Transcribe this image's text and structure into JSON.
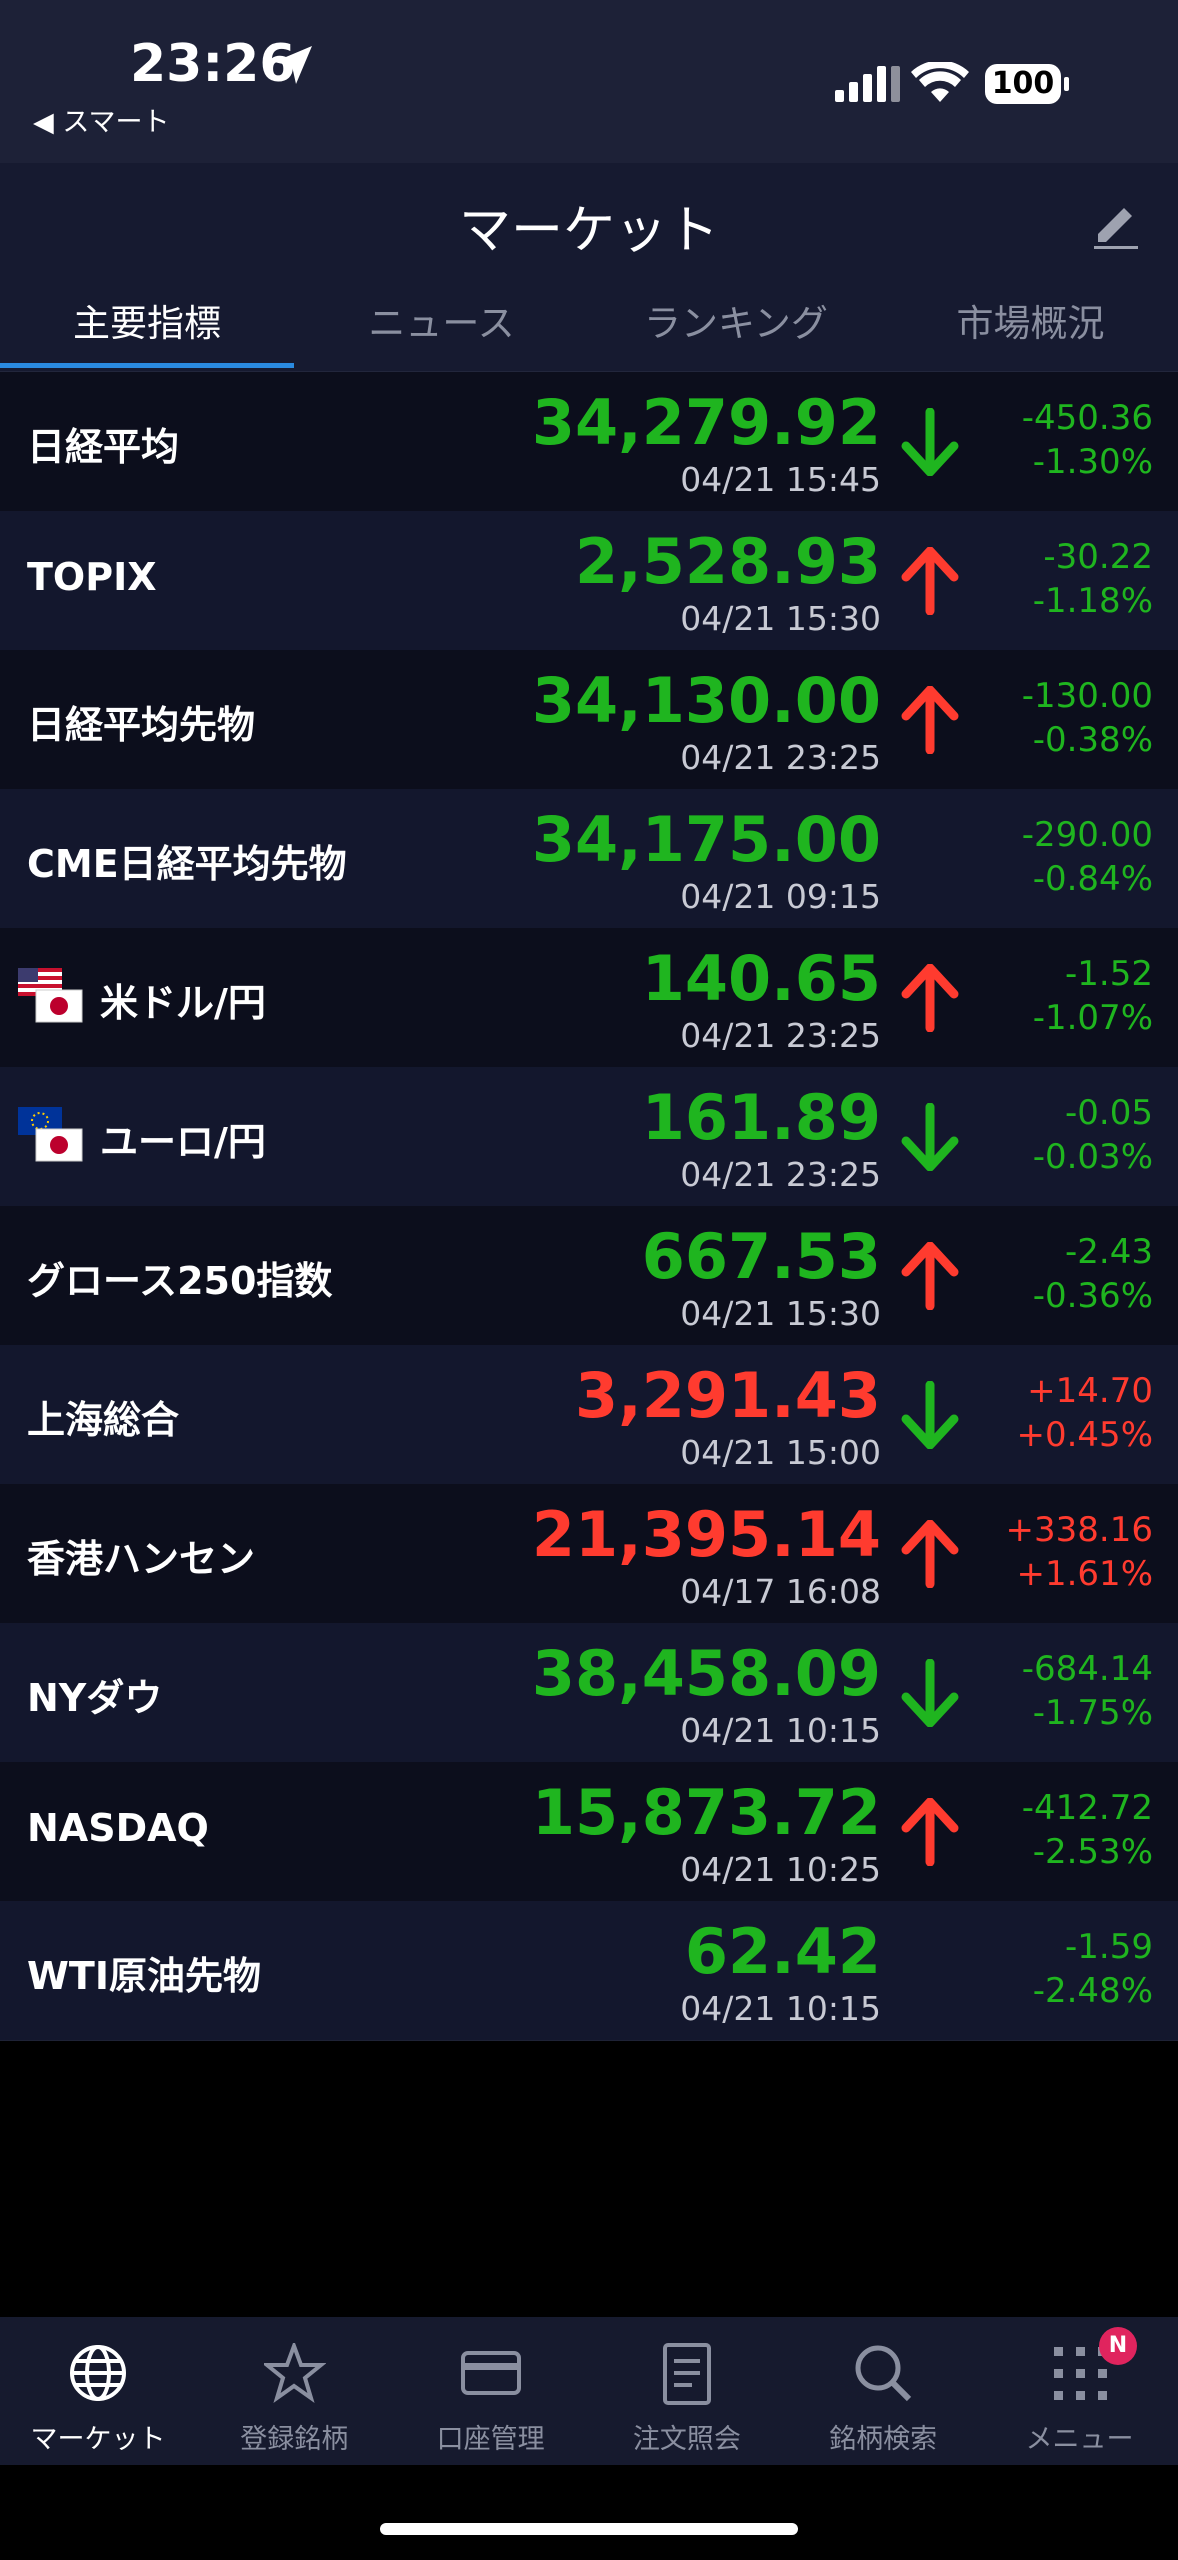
{
  "status_bar": {
    "time": "23:26",
    "back": "◀ スマート",
    "battery": "100"
  },
  "header": {
    "title": "マーケット"
  },
  "tabs": [
    "主要指標",
    "ニュース",
    "ランキング",
    "市場概況"
  ],
  "rows": [
    {
      "name": "日経平均",
      "price": "34,279.92",
      "date": "04/21 15:45",
      "change": "-450.36",
      "pct": "-1.30%",
      "color": "#1fb51f",
      "arrow": "down"
    },
    {
      "name": "TOPIX",
      "price": "2,528.93",
      "date": "04/21 15:30",
      "change": "-30.22",
      "pct": "-1.18%",
      "color": "#1fb51f",
      "arrow": "up"
    },
    {
      "name": "日経平均先物",
      "price": "34,130.00",
      "date": "04/21 23:25",
      "change": "-130.00",
      "pct": "-0.38%",
      "color": "#1fb51f",
      "arrow": "up"
    },
    {
      "name": "CME日経平均先物",
      "price": "34,175.00",
      "date": "04/21 09:15",
      "change": "-290.00",
      "pct": "-0.84%",
      "color": "#1fb51f",
      "arrow": null
    },
    {
      "name": "米ドル/円",
      "price": "140.65",
      "date": "04/21 23:25",
      "change": "-1.52",
      "pct": "-1.07%",
      "color": "#1fb51f",
      "arrow": "up",
      "flag": "us"
    },
    {
      "name": "ユーロ/円",
      "price": "161.89",
      "date": "04/21 23:25",
      "change": "-0.05",
      "pct": "-0.03%",
      "color": "#1fb51f",
      "arrow": "down",
      "flag": "eu"
    },
    {
      "name": "グロース250指数",
      "price": "667.53",
      "date": "04/21 15:30",
      "change": "-2.43",
      "pct": "-0.36%",
      "color": "#1fb51f",
      "arrow": "up"
    },
    {
      "name": "上海総合",
      "price": "3,291.43",
      "date": "04/21 15:00",
      "change": "+14.70",
      "pct": "+0.45%",
      "color": "#ff3b2f",
      "arrow": "down"
    },
    {
      "name": "香港ハンセン",
      "price": "21,395.14",
      "date": "04/17 16:08",
      "change": "+338.16",
      "pct": "+1.61%",
      "color": "#ff3b2f",
      "arrow": "up"
    },
    {
      "name": "NYダウ",
      "price": "38,458.09",
      "date": "04/21 10:15",
      "change": "-684.14",
      "pct": "-1.75%",
      "color": "#1fb51f",
      "arrow": "down"
    },
    {
      "name": "NASDAQ",
      "price": "15,873.72",
      "date": "04/21 10:25",
      "change": "-412.72",
      "pct": "-2.53%",
      "color": "#1fb51f",
      "arrow": "up"
    },
    {
      "name": "WTI原油先物",
      "price": "62.42",
      "date": "04/21 10:15",
      "change": "-1.59",
      "pct": "-2.48%",
      "color": "#1fb51f",
      "arrow": null
    }
  ],
  "nav": [
    "マーケット",
    "登録銘柄",
    "口座管理",
    "注文照会",
    "銘柄検索",
    "メニュー"
  ],
  "nav_badge": "N"
}
